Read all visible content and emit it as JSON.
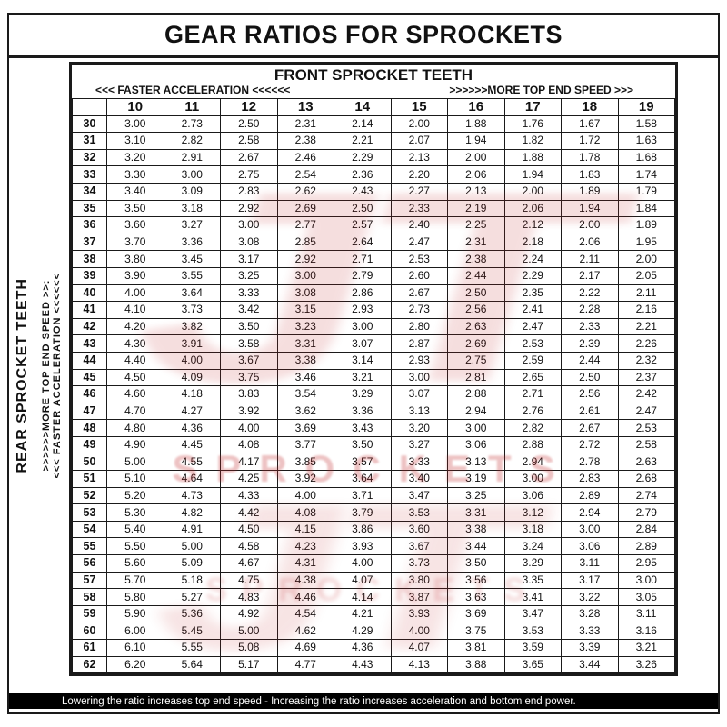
{
  "title": "GEAR RATIOS FOR SPROCKETS",
  "table": {
    "column_group_title": "FRONT SPROCKET TEETH",
    "top_left_arrows": "<<< FASTER  ACCELERATION <<<<<<",
    "top_right_arrows": ">>>>>>MORE TOP END SPEED >>>",
    "left_axis_title": "REAR SPROCKET TEETH",
    "left_bottom_arrows": "<<< FASTER  ACCELERATION <<<<<<",
    "left_top_arrows": ">>>>>>MORE TOP END SPEED >>:"
  },
  "footer": "Lowering the ratio increases top end speed - Increasing the ratio increases acceleration and bottom end power.",
  "watermark": {
    "text_large": "JT",
    "text_small": "SPROCKETS",
    "color": "#c0282a"
  },
  "chart_data": {
    "type": "table",
    "title": "GEAR RATIOS FOR SPROCKETS",
    "x_header": "FRONT SPROCKET TEETH",
    "y_header": "REAR SPROCKET TEETH",
    "front_teeth": [
      10,
      11,
      12,
      13,
      14,
      15,
      16,
      17,
      18,
      19
    ],
    "rear_teeth": [
      30,
      31,
      32,
      33,
      34,
      35,
      36,
      37,
      38,
      39,
      40,
      41,
      42,
      43,
      44,
      45,
      46,
      47,
      48,
      49,
      50,
      51,
      52,
      53,
      54,
      55,
      56,
      57,
      58,
      59,
      60,
      61,
      62
    ],
    "ratios": [
      [
        "3.00",
        "2.73",
        "2.50",
        "2.31",
        "2.14",
        "2.00",
        "1.88",
        "1.76",
        "1.67",
        "1.58"
      ],
      [
        "3.10",
        "2.82",
        "2.58",
        "2.38",
        "2.21",
        "2.07",
        "1.94",
        "1.82",
        "1.72",
        "1.63"
      ],
      [
        "3.20",
        "2.91",
        "2.67",
        "2.46",
        "2.29",
        "2.13",
        "2.00",
        "1.88",
        "1.78",
        "1.68"
      ],
      [
        "3.30",
        "3.00",
        "2.75",
        "2.54",
        "2.36",
        "2.20",
        "2.06",
        "1.94",
        "1.83",
        "1.74"
      ],
      [
        "3.40",
        "3.09",
        "2.83",
        "2.62",
        "2.43",
        "2.27",
        "2.13",
        "2.00",
        "1.89",
        "1.79"
      ],
      [
        "3.50",
        "3.18",
        "2.92",
        "2.69",
        "2.50",
        "2.33",
        "2.19",
        "2.06",
        "1.94",
        "1.84"
      ],
      [
        "3.60",
        "3.27",
        "3.00",
        "2.77",
        "2.57",
        "2.40",
        "2.25",
        "2.12",
        "2.00",
        "1.89"
      ],
      [
        "3.70",
        "3.36",
        "3.08",
        "2.85",
        "2.64",
        "2.47",
        "2.31",
        "2.18",
        "2.06",
        "1.95"
      ],
      [
        "3.80",
        "3.45",
        "3.17",
        "2.92",
        "2.71",
        "2.53",
        "2.38",
        "2.24",
        "2.11",
        "2.00"
      ],
      [
        "3.90",
        "3.55",
        "3.25",
        "3.00",
        "2.79",
        "2.60",
        "2.44",
        "2.29",
        "2.17",
        "2.05"
      ],
      [
        "4.00",
        "3.64",
        "3.33",
        "3.08",
        "2.86",
        "2.67",
        "2.50",
        "2.35",
        "2.22",
        "2.11"
      ],
      [
        "4.10",
        "3.73",
        "3.42",
        "3.15",
        "2.93",
        "2.73",
        "2.56",
        "2.41",
        "2.28",
        "2.16"
      ],
      [
        "4.20",
        "3.82",
        "3.50",
        "3.23",
        "3.00",
        "2.80",
        "2.63",
        "2.47",
        "2.33",
        "2.21"
      ],
      [
        "4.30",
        "3.91",
        "3.58",
        "3.31",
        "3.07",
        "2.87",
        "2.69",
        "2.53",
        "2.39",
        "2.26"
      ],
      [
        "4.40",
        "4.00",
        "3.67",
        "3.38",
        "3.14",
        "2.93",
        "2.75",
        "2.59",
        "2.44",
        "2.32"
      ],
      [
        "4.50",
        "4.09",
        "3.75",
        "3.46",
        "3.21",
        "3.00",
        "2.81",
        "2.65",
        "2.50",
        "2.37"
      ],
      [
        "4.60",
        "4.18",
        "3.83",
        "3.54",
        "3.29",
        "3.07",
        "2.88",
        "2.71",
        "2.56",
        "2.42"
      ],
      [
        "4.70",
        "4.27",
        "3.92",
        "3.62",
        "3.36",
        "3.13",
        "2.94",
        "2.76",
        "2.61",
        "2.47"
      ],
      [
        "4.80",
        "4.36",
        "4.00",
        "3.69",
        "3.43",
        "3.20",
        "3.00",
        "2.82",
        "2.67",
        "2.53"
      ],
      [
        "4.90",
        "4.45",
        "4.08",
        "3.77",
        "3.50",
        "3.27",
        "3.06",
        "2.88",
        "2.72",
        "2.58"
      ],
      [
        "5.00",
        "4.55",
        "4.17",
        "3.85",
        "3.57",
        "3.33",
        "3.13",
        "2.94",
        "2.78",
        "2.63"
      ],
      [
        "5.10",
        "4.64",
        "4.25",
        "3.92",
        "3.64",
        "3.40",
        "3.19",
        "3.00",
        "2.83",
        "2.68"
      ],
      [
        "5.20",
        "4.73",
        "4.33",
        "4.00",
        "3.71",
        "3.47",
        "3.25",
        "3.06",
        "2.89",
        "2.74"
      ],
      [
        "5.30",
        "4.82",
        "4.42",
        "4.08",
        "3.79",
        "3.53",
        "3.31",
        "3.12",
        "2.94",
        "2.79"
      ],
      [
        "5.40",
        "4.91",
        "4.50",
        "4.15",
        "3.86",
        "3.60",
        "3.38",
        "3.18",
        "3.00",
        "2.84"
      ],
      [
        "5.50",
        "5.00",
        "4.58",
        "4.23",
        "3.93",
        "3.67",
        "3.44",
        "3.24",
        "3.06",
        "2.89"
      ],
      [
        "5.60",
        "5.09",
        "4.67",
        "4.31",
        "4.00",
        "3.73",
        "3.50",
        "3.29",
        "3.11",
        "2.95"
      ],
      [
        "5.70",
        "5.18",
        "4.75",
        "4.38",
        "4.07",
        "3.80",
        "3.56",
        "3.35",
        "3.17",
        "3.00"
      ],
      [
        "5.80",
        "5.27",
        "4.83",
        "4.46",
        "4.14",
        "3.87",
        "3.63",
        "3.41",
        "3.22",
        "3.05"
      ],
      [
        "5.90",
        "5.36",
        "4.92",
        "4.54",
        "4.21",
        "3.93",
        "3.69",
        "3.47",
        "3.28",
        "3.11"
      ],
      [
        "6.00",
        "5.45",
        "5.00",
        "4.62",
        "4.29",
        "4.00",
        "3.75",
        "3.53",
        "3.33",
        "3.16"
      ],
      [
        "6.10",
        "5.55",
        "5.08",
        "4.69",
        "4.36",
        "4.07",
        "3.81",
        "3.59",
        "3.39",
        "3.21"
      ],
      [
        "6.20",
        "5.64",
        "5.17",
        "4.77",
        "4.43",
        "4.13",
        "3.88",
        "3.65",
        "3.44",
        "3.26"
      ]
    ]
  }
}
